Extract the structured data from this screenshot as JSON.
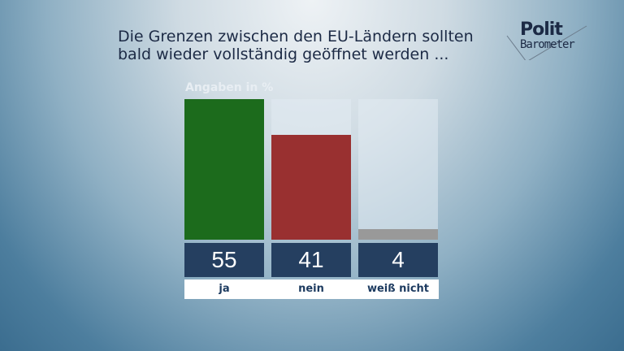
{
  "title": [
    "Die Grenzen zwischen den EU-Ländern sollten",
    "bald wieder vollständig geöffnet werden ..."
  ],
  "logo": {
    "line1": "Polit",
    "line2": "Barometer"
  },
  "chart_data": {
    "type": "bar",
    "title": "Die Grenzen zwischen den EU-Ländern sollten bald wieder vollständig geöffnet werden ...",
    "ylabel": "Angaben in %",
    "categories": [
      "ja",
      "nein",
      "weiß nicht"
    ],
    "values": [
      55,
      41,
      4
    ],
    "labels": [
      "55",
      "41",
      "4"
    ],
    "colors": [
      "#1c6b1c",
      "#993030",
      "#999999"
    ],
    "ylim": [
      0,
      55
    ]
  }
}
